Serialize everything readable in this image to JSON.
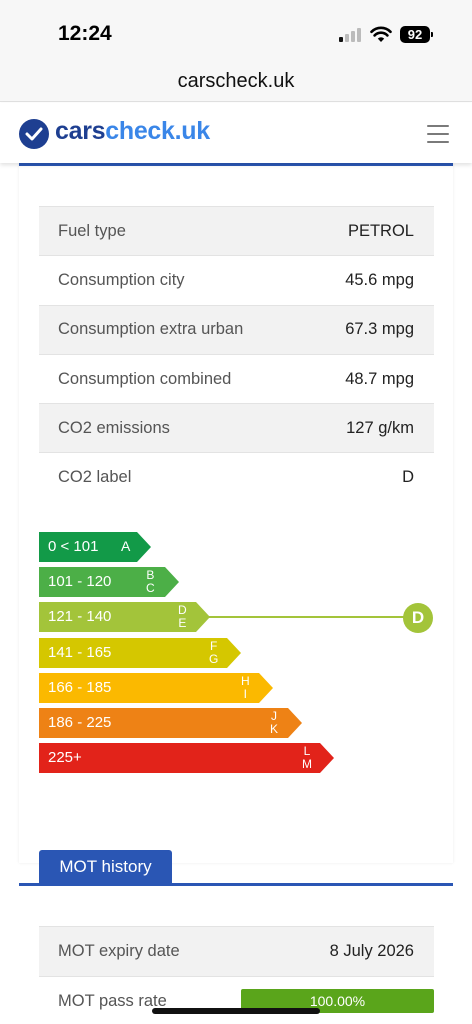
{
  "status_bar": {
    "time": "12:24",
    "battery": "92"
  },
  "browser": {
    "url": "carscheck.uk"
  },
  "site": {
    "logo_part1": "cars",
    "logo_part2": "check.uk",
    "brand_color": "#1e3f91",
    "accent_color": "#3a86e8"
  },
  "specs": [
    {
      "label": "Fuel type",
      "value": "PETROL"
    },
    {
      "label": "Consumption city",
      "value": "45.6 mpg"
    },
    {
      "label": "Consumption extra urban",
      "value": "67.3 mpg"
    },
    {
      "label": "Consumption combined",
      "value": "48.7 mpg"
    },
    {
      "label": "CO2 emissions",
      "value": "127 g/km"
    },
    {
      "label": "CO2 label",
      "value": "D"
    }
  ],
  "co2_bands": [
    {
      "range": "0 < 101",
      "letters": "A",
      "color": "#129a48"
    },
    {
      "range": "101 - 120",
      "letters": "B\nC",
      "color": "#4caf47"
    },
    {
      "range": "121 - 140",
      "letters": "D\nE",
      "color": "#a3c43a"
    },
    {
      "range": "141 - 165",
      "letters": "F\nG",
      "color": "#d5c700"
    },
    {
      "range": "166 - 185",
      "letters": "H\nI",
      "color": "#fbb900"
    },
    {
      "range": "186 - 225",
      "letters": "J\nK",
      "color": "#ee8215"
    },
    {
      "range": "225+",
      "letters": "L\nM",
      "color": "#e2231a"
    }
  ],
  "co2_marker": {
    "label": "D",
    "band_index": 2
  },
  "mot": {
    "tab_label": "MOT history",
    "rows": [
      {
        "label": "MOT expiry date",
        "value": "8 July 2026"
      },
      {
        "label": "MOT pass rate",
        "value": "100.00%"
      }
    ],
    "pass_rate_fraction": 1.0
  }
}
